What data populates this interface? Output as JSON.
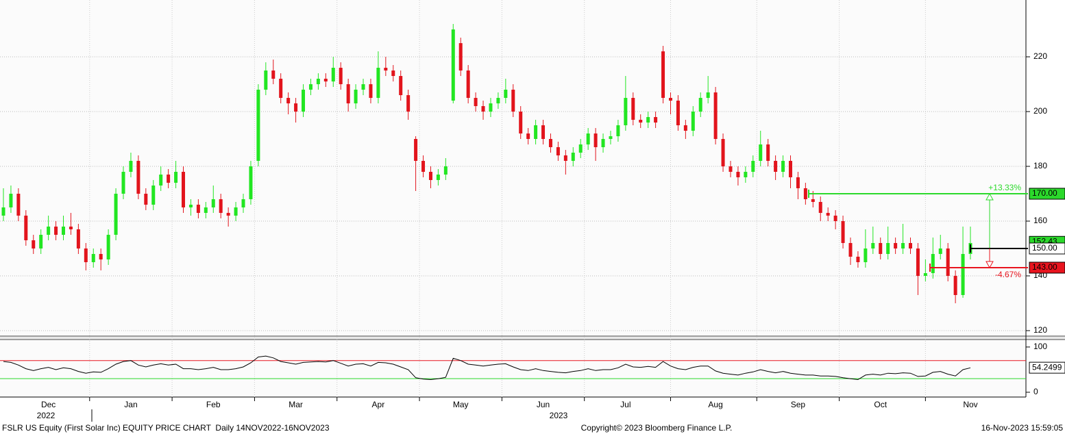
{
  "chart_data": {
    "type": "candlestick",
    "categories": [
      null,
      null,
      null,
      null,
      null,
      null,
      "Dec",
      null,
      null,
      null,
      null,
      null,
      null,
      null,
      null,
      null,
      null,
      "Jan",
      null,
      null,
      null,
      null,
      null,
      null,
      null,
      null,
      null,
      null,
      "Feb",
      null,
      null,
      null,
      null,
      null,
      null,
      null,
      null,
      null,
      null,
      "Mar",
      null,
      null,
      null,
      null,
      null,
      null,
      null,
      null,
      null,
      null,
      "Apr",
      null,
      null,
      null,
      null,
      null,
      null,
      null,
      null,
      null,
      null,
      "May",
      null,
      null,
      null,
      null,
      null,
      null,
      null,
      null,
      null,
      null,
      "Jun",
      null,
      null,
      null,
      null,
      null,
      null,
      null,
      null,
      null,
      null,
      "Jul",
      null,
      null,
      null,
      null,
      null,
      null,
      null,
      null,
      null,
      null,
      null,
      "Aug",
      null,
      null,
      null,
      null,
      null,
      null,
      null,
      null,
      null,
      null,
      "Sep",
      null,
      null,
      null,
      null,
      null,
      null,
      null,
      null,
      null,
      null,
      "Oct",
      null,
      null,
      null,
      null,
      null,
      null,
      null,
      null,
      null,
      null,
      null,
      "Nov"
    ],
    "ohlc": [
      [
        162,
        172,
        160,
        165
      ],
      [
        165,
        173,
        163,
        170
      ],
      [
        170,
        172,
        160,
        162
      ],
      [
        162,
        164,
        151,
        153
      ],
      [
        153,
        155,
        148,
        150
      ],
      [
        150,
        157,
        148,
        155
      ],
      [
        155,
        162,
        153,
        158
      ],
      [
        158,
        160,
        153,
        155
      ],
      [
        155,
        162,
        153,
        158
      ],
      [
        158,
        163,
        155,
        157
      ],
      [
        157,
        159,
        148,
        150
      ],
      [
        150,
        152,
        142,
        145
      ],
      [
        145,
        150,
        143,
        148
      ],
      [
        148,
        150,
        142,
        146
      ],
      [
        146,
        157,
        144,
        155
      ],
      [
        155,
        172,
        153,
        170
      ],
      [
        170,
        180,
        168,
        178
      ],
      [
        178,
        185,
        176,
        182
      ],
      [
        182,
        184,
        168,
        170
      ],
      [
        170,
        172,
        164,
        166
      ],
      [
        166,
        175,
        164,
        173
      ],
      [
        173,
        180,
        171,
        177
      ],
      [
        177,
        179,
        172,
        174
      ],
      [
        174,
        182,
        172,
        178
      ],
      [
        178,
        180,
        163,
        165
      ],
      [
        165,
        168,
        162,
        166
      ],
      [
        166,
        168,
        161,
        163
      ],
      [
        163,
        167,
        161,
        165
      ],
      [
        165,
        173,
        163,
        168
      ],
      [
        168,
        170,
        161,
        163
      ],
      [
        163,
        165,
        158,
        162
      ],
      [
        162,
        167,
        160,
        165
      ],
      [
        165,
        170,
        163,
        168
      ],
      [
        168,
        182,
        166,
        180
      ],
      [
        182,
        210,
        180,
        208
      ],
      [
        208,
        218,
        206,
        215
      ],
      [
        215,
        219,
        210,
        212
      ],
      [
        212,
        214,
        203,
        205
      ],
      [
        205,
        207,
        199,
        203
      ],
      [
        203,
        205,
        196,
        200
      ],
      [
        200,
        210,
        198,
        208
      ],
      [
        208,
        212,
        206,
        210
      ],
      [
        210,
        214,
        208,
        212
      ],
      [
        212,
        214,
        209,
        211
      ],
      [
        211,
        220,
        209,
        216
      ],
      [
        216,
        218,
        208,
        210
      ],
      [
        210,
        212,
        200,
        203
      ],
      [
        203,
        210,
        201,
        208
      ],
      [
        208,
        212,
        206,
        210
      ],
      [
        210,
        212,
        203,
        205
      ],
      [
        205,
        222,
        203,
        216
      ],
      [
        216,
        220,
        213,
        215
      ],
      [
        215,
        217,
        211,
        213
      ],
      [
        213,
        215,
        204,
        206
      ],
      [
        206,
        208,
        197,
        200
      ],
      [
        190,
        191,
        171,
        182
      ],
      [
        182,
        184,
        176,
        178
      ],
      [
        178,
        180,
        172,
        175
      ],
      [
        175,
        179,
        173,
        177
      ],
      [
        177,
        183,
        175,
        180
      ],
      [
        204,
        232,
        203,
        230
      ],
      [
        225,
        227,
        213,
        215
      ],
      [
        215,
        217,
        203,
        205
      ],
      [
        205,
        207,
        200,
        202
      ],
      [
        202,
        204,
        197,
        200
      ],
      [
        200,
        205,
        198,
        203
      ],
      [
        203,
        207,
        201,
        205
      ],
      [
        205,
        212,
        203,
        208
      ],
      [
        208,
        210,
        198,
        200
      ],
      [
        200,
        202,
        190,
        192
      ],
      [
        192,
        194,
        188,
        190
      ],
      [
        190,
        197,
        188,
        195
      ],
      [
        195,
        197,
        188,
        190
      ],
      [
        190,
        192,
        185,
        187
      ],
      [
        187,
        189,
        182,
        184
      ],
      [
        184,
        186,
        177,
        182
      ],
      [
        182,
        187,
        180,
        185
      ],
      [
        185,
        190,
        183,
        188
      ],
      [
        188,
        194,
        186,
        192
      ],
      [
        192,
        194,
        182,
        187
      ],
      [
        187,
        192,
        185,
        190
      ],
      [
        190,
        193,
        188,
        191
      ],
      [
        191,
        197,
        189,
        195
      ],
      [
        195,
        213,
        193,
        205
      ],
      [
        205,
        207,
        195,
        197
      ],
      [
        197,
        199,
        194,
        196
      ],
      [
        196,
        200,
        194,
        198
      ],
      [
        198,
        200,
        194,
        196
      ],
      [
        222,
        224,
        203,
        205
      ],
      [
        205,
        207,
        199,
        204
      ],
      [
        204,
        206,
        193,
        195
      ],
      [
        195,
        197,
        190,
        193
      ],
      [
        193,
        202,
        191,
        200
      ],
      [
        200,
        207,
        198,
        205
      ],
      [
        205,
        213,
        203,
        207
      ],
      [
        207,
        209,
        188,
        190
      ],
      [
        190,
        192,
        178,
        180
      ],
      [
        180,
        182,
        176,
        178
      ],
      [
        178,
        180,
        173,
        176
      ],
      [
        176,
        180,
        174,
        178
      ],
      [
        178,
        184,
        176,
        182
      ],
      [
        182,
        193,
        180,
        188
      ],
      [
        188,
        190,
        180,
        182
      ],
      [
        182,
        184,
        175,
        178
      ],
      [
        178,
        184,
        176,
        182
      ],
      [
        182,
        184,
        172,
        176
      ],
      [
        176,
        178,
        168,
        172
      ],
      [
        172,
        174,
        166,
        168
      ],
      [
        168,
        171,
        165,
        167
      ],
      [
        167,
        169,
        160,
        163
      ],
      [
        163,
        165,
        160,
        162
      ],
      [
        162,
        164,
        157,
        160
      ],
      [
        160,
        162,
        150,
        152
      ],
      [
        152,
        154,
        144,
        147
      ],
      [
        147,
        149,
        143,
        145
      ],
      [
        145,
        157,
        143,
        150
      ],
      [
        150,
        158,
        148,
        152
      ],
      [
        152,
        154,
        146,
        148
      ],
      [
        148,
        158,
        146,
        152
      ],
      [
        152,
        154,
        148,
        150
      ],
      [
        150,
        159,
        148,
        152
      ],
      [
        152,
        154,
        148,
        150
      ],
      [
        150,
        152,
        133,
        140
      ],
      [
        140,
        146,
        138,
        141
      ],
      [
        141,
        154,
        139,
        148
      ],
      [
        148,
        155,
        146,
        150
      ],
      [
        150,
        152,
        138,
        140
      ],
      [
        140,
        142,
        130,
        133
      ],
      [
        133,
        158,
        132,
        148
      ],
      [
        148,
        158,
        146,
        152
      ]
    ],
    "up_color": "#22e622",
    "down_color": "#e2141c",
    "ylim": [
      118.25,
      240.75
    ],
    "yticks": [
      120,
      140,
      160,
      180,
      200,
      220
    ],
    "grid": true,
    "last_price": {
      "value": 152.43,
      "label": "152.43"
    },
    "levels": [
      {
        "value": 170,
        "label": "170.00",
        "color": "#2bd92b",
        "change": "+13.33%"
      },
      {
        "value": 150,
        "label": "150.00",
        "color": "#000000"
      },
      {
        "value": 143,
        "label": "143.00",
        "color": "#e8141e",
        "change": "-4.67%"
      }
    ],
    "years": [
      "2022",
      "2023"
    ],
    "rsi": {
      "values": [
        68,
        66,
        60,
        52,
        48,
        52,
        55,
        50,
        54,
        52,
        46,
        42,
        45,
        44,
        52,
        62,
        68,
        70,
        60,
        56,
        60,
        63,
        60,
        62,
        52,
        52,
        50,
        52,
        55,
        50,
        50,
        52,
        56,
        65,
        78,
        80,
        76,
        68,
        65,
        62,
        66,
        67,
        68,
        67,
        70,
        64,
        58,
        62,
        63,
        58,
        66,
        65,
        62,
        56,
        50,
        32,
        29,
        28,
        30,
        33,
        75,
        70,
        62,
        60,
        58,
        60,
        62,
        63,
        56,
        50,
        48,
        52,
        48,
        46,
        44,
        43,
        46,
        48,
        52,
        48,
        50,
        50,
        54,
        62,
        56,
        55,
        57,
        55,
        68,
        58,
        52,
        50,
        55,
        58,
        58,
        47,
        42,
        40,
        38,
        42,
        45,
        50,
        46,
        43,
        46,
        42,
        40,
        38,
        38,
        36,
        36,
        35,
        32,
        30,
        28,
        38,
        40,
        38,
        42,
        41,
        43,
        42,
        35,
        36,
        44,
        46,
        40,
        36,
        50,
        54
      ],
      "ylim": [
        -10.6,
        115
      ],
      "yticks": [
        0,
        100
      ],
      "last": 54.2499,
      "levels": [
        {
          "value": 70,
          "color": "#e8141e"
        },
        {
          "value": 30,
          "color": "#2bd92b"
        }
      ]
    }
  },
  "footer": {
    "left": "FSLR US Equity (First Solar Inc) EQUITY PRICE CHART  Daily 14NOV2022-16NOV2023",
    "center": "Copyright© 2023 Bloomberg Finance L.P.",
    "right": "16-Nov-2023 15:59:05"
  }
}
